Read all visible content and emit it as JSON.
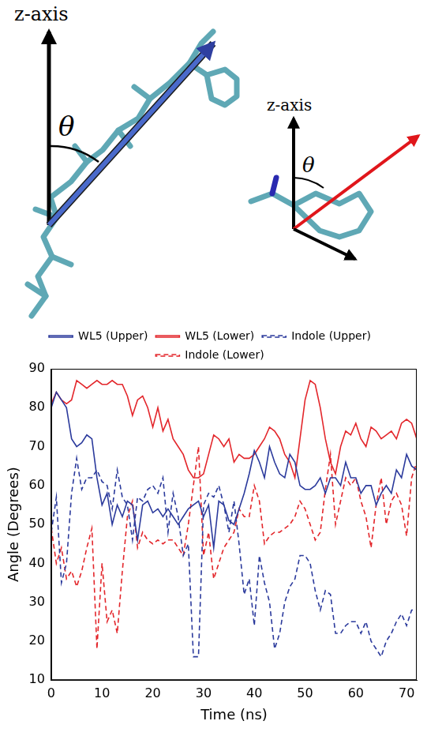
{
  "chart_data": {
    "type": "line",
    "x_label": "Time (ns)",
    "y_label": "Angle (Degrees)",
    "xlim": [
      0,
      72
    ],
    "xticks": [
      0,
      10,
      20,
      30,
      40,
      50,
      60,
      70
    ],
    "ylim": [
      10,
      90
    ],
    "yticks": [
      10,
      20,
      30,
      40,
      50,
      60,
      70,
      80,
      90
    ],
    "grid": false,
    "legend": "top",
    "x": [
      0,
      1,
      2,
      3,
      4,
      5,
      6,
      7,
      8,
      9,
      10,
      11,
      12,
      13,
      14,
      15,
      16,
      17,
      18,
      19,
      20,
      21,
      22,
      23,
      24,
      25,
      26,
      27,
      28,
      29,
      30,
      31,
      32,
      33,
      34,
      35,
      36,
      37,
      38,
      39,
      40,
      41,
      42,
      43,
      44,
      45,
      46,
      47,
      48,
      49,
      50,
      51,
      52,
      53,
      54,
      55,
      56,
      57,
      58,
      59,
      60,
      61,
      62,
      63,
      64,
      65,
      66,
      67,
      68,
      69,
      70,
      71,
      72
    ],
    "series": [
      {
        "name": "WL5 (Upper)",
        "color": "#2b3a9c",
        "line_style": "solid",
        "values": [
          80,
          84,
          82,
          80,
          72,
          70,
          71,
          73,
          72,
          62,
          55,
          58,
          50,
          55,
          52,
          56,
          55,
          46,
          55,
          56,
          53,
          54,
          52,
          54,
          52,
          50,
          52,
          54,
          55,
          56,
          52,
          55,
          44,
          56,
          55,
          51,
          50,
          54,
          58,
          63,
          69,
          66,
          62,
          70,
          66,
          63,
          62,
          68,
          66,
          60,
          59,
          59,
          60,
          62,
          58,
          62,
          62,
          60,
          66,
          62,
          62,
          58,
          60,
          60,
          55,
          58,
          60,
          58,
          64,
          62,
          68,
          65,
          64
        ]
      },
      {
        "name": "WL5 (Lower)",
        "color": "#e3262b",
        "line_style": "solid",
        "values": [
          81,
          84,
          82,
          81,
          82,
          87,
          86,
          85,
          86,
          87,
          86,
          86,
          87,
          86,
          86,
          83,
          78,
          82,
          83,
          80,
          75,
          80,
          74,
          77,
          72,
          70,
          68,
          64,
          62,
          62,
          63,
          68,
          73,
          72,
          70,
          72,
          66,
          68,
          67,
          67,
          68,
          70,
          72,
          75,
          74,
          72,
          68,
          66,
          62,
          72,
          82,
          87,
          86,
          80,
          72,
          66,
          63,
          70,
          74,
          73,
          76,
          72,
          70,
          75,
          74,
          72,
          73,
          74,
          72,
          76,
          77,
          76,
          72
        ]
      },
      {
        "name": "Indole (Upper)",
        "color": "#2b3a9c",
        "line_style": "dashed",
        "values": [
          48,
          57,
          35,
          40,
          58,
          67,
          59,
          62,
          62,
          64,
          61,
          60,
          54,
          64,
          57,
          55,
          46,
          57,
          56,
          59,
          60,
          58,
          62,
          48,
          58,
          52,
          42,
          45,
          16,
          16,
          55,
          58,
          57,
          60,
          55,
          48,
          56,
          45,
          32,
          36,
          24,
          42,
          35,
          30,
          18,
          22,
          30,
          34,
          36,
          42,
          42,
          40,
          33,
          28,
          33,
          32,
          22,
          22,
          24,
          25,
          25,
          22,
          25,
          20,
          18,
          16,
          20,
          22,
          25,
          27,
          24,
          28,
          28
        ]
      },
      {
        "name": "Indole (Lower)",
        "color": "#e3262b",
        "line_style": "dashed",
        "values": [
          49,
          40,
          44,
          36,
          38,
          34,
          38,
          44,
          49,
          18,
          40,
          25,
          28,
          22,
          38,
          52,
          56,
          44,
          48,
          46,
          45,
          46,
          45,
          46,
          46,
          44,
          42,
          50,
          60,
          70,
          42,
          48,
          36,
          40,
          44,
          46,
          48,
          54,
          52,
          52,
          60,
          56,
          45,
          47,
          48,
          48,
          49,
          50,
          52,
          56,
          54,
          50,
          46,
          48,
          59,
          68,
          50,
          56,
          62,
          60,
          62,
          56,
          52,
          44,
          55,
          62,
          50,
          56,
          58,
          55,
          47,
          62,
          66
        ]
      }
    ]
  },
  "diagram": {
    "left": {
      "axis_label": "z-axis",
      "angle_label": "θ"
    },
    "right": {
      "axis_label": "z-axis",
      "angle_label": "θ"
    }
  }
}
